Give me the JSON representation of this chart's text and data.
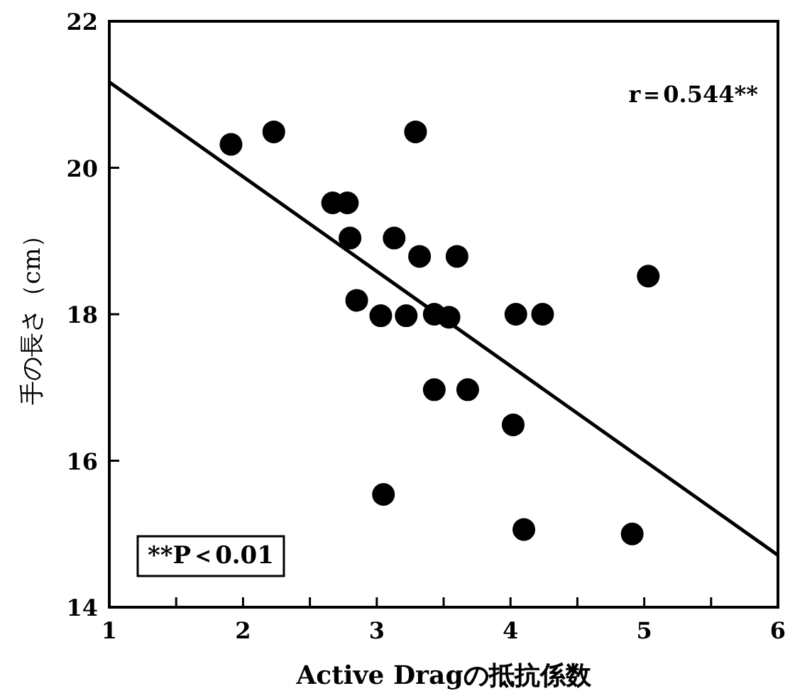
{
  "chart_data": {
    "type": "scatter",
    "xlabel": "Active Dragの抵抗係数",
    "ylabel": "手の長さ（cm）",
    "annotations": [
      "r＝0.544**",
      "**P＜0.01"
    ],
    "xlim": [
      1,
      6
    ],
    "ylim": [
      14,
      22
    ],
    "xticks": [
      1,
      {
        "value": 1.5,
        "label": null
      },
      2,
      {
        "value": 2.5,
        "label": null
      },
      3,
      {
        "value": 3.5,
        "label": null
      },
      4,
      {
        "value": 4.5,
        "label": null
      },
      5,
      {
        "value": 5.5,
        "label": null
      },
      6
    ],
    "yticks": [
      14,
      16,
      18,
      20,
      22
    ],
    "marker": "circle",
    "series": [
      {
        "color": "#000000",
        "x": [
          1.91,
          2.23,
          3.29,
          2.67,
          2.78,
          2.8,
          3.13,
          3.32,
          3.6,
          2.85,
          3.03,
          3.22,
          3.43,
          3.54,
          4.04,
          4.24,
          5.03,
          3.43,
          3.68,
          4.02,
          3.05,
          4.1,
          4.91
        ],
        "values": [
          20.32,
          20.49,
          20.49,
          19.52,
          19.52,
          19.04,
          19.04,
          18.79,
          18.79,
          18.19,
          17.98,
          17.98,
          18.0,
          17.96,
          18.0,
          18.0,
          18.52,
          16.97,
          16.97,
          16.49,
          15.54,
          15.06,
          15.0
        ]
      },
      {
        "type": "line",
        "marker": "none",
        "color": "#000000",
        "x": [
          1,
          6
        ],
        "values": [
          21.17,
          14.71
        ]
      }
    ]
  }
}
